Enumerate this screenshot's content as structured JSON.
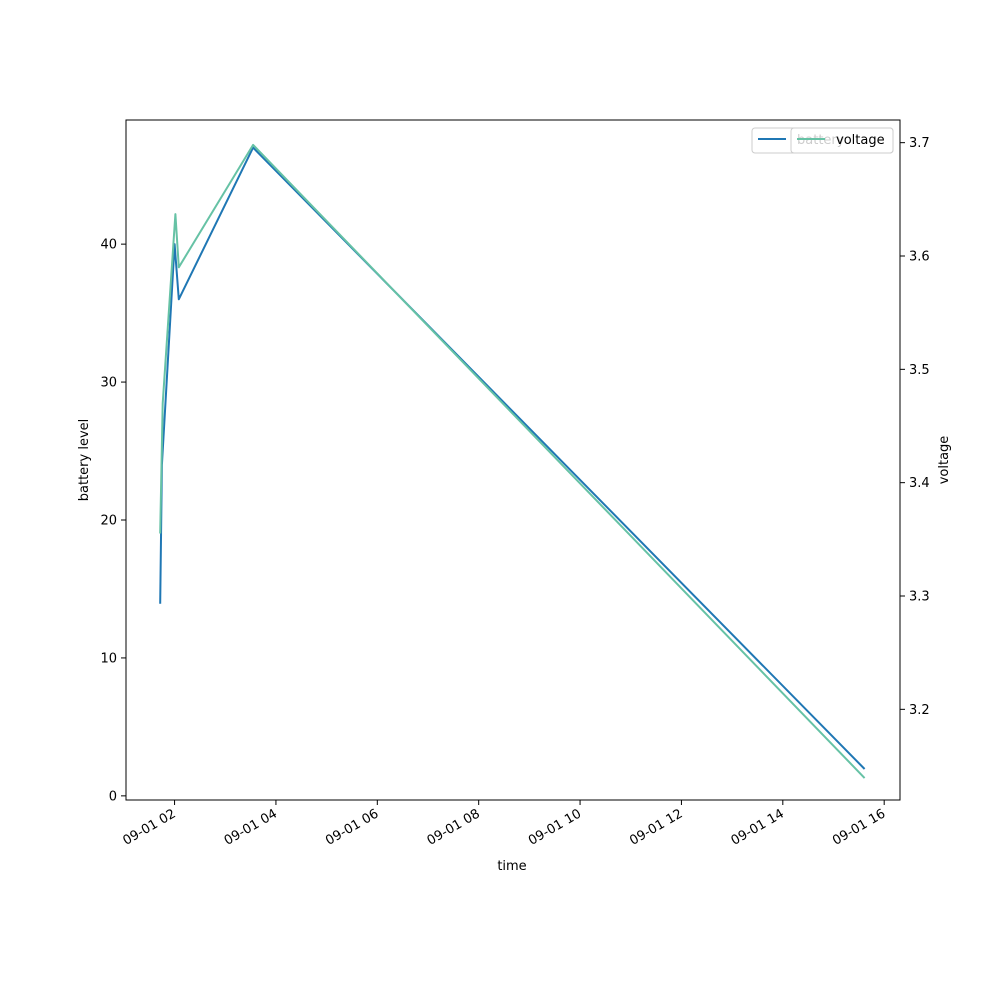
{
  "chart_data": {
    "type": "line",
    "title": "",
    "xlabel": "time",
    "ylabel_left": "battery level",
    "ylabel_right": "voltage",
    "x_axis": {
      "kind": "datetime",
      "tick_labels": [
        "09-01 02",
        "09-01 04",
        "09-01 06",
        "09-01 08",
        "09-01 10",
        "09-01 12",
        "09-01 14",
        "09-01 16"
      ]
    },
    "y_left": {
      "ylim": [
        -0.3,
        49
      ],
      "ticks": [
        0,
        10,
        20,
        30,
        40
      ]
    },
    "y_right": {
      "ylim": [
        3.12,
        3.72
      ],
      "ticks": [
        3.2,
        3.3,
        3.4,
        3.5,
        3.6,
        3.7
      ],
      "tick_labels": [
        "3.2",
        "3.3",
        "3.4",
        "3.5",
        "3.6",
        "3.7"
      ]
    },
    "grid": false,
    "legend_placement": "top-right",
    "series": [
      {
        "name": "battery",
        "axis": "left",
        "color": "#1f77b4",
        "points": [
          {
            "x": "2021-09-01 01:43",
            "y": 14
          },
          {
            "x": "2021-09-01 01:45",
            "y": 24
          },
          {
            "x": "2021-09-01 02:00",
            "y": 40
          },
          {
            "x": "2021-09-01 02:05",
            "y": 36
          },
          {
            "x": "2021-09-01 03:33",
            "y": 47
          },
          {
            "x": "2021-09-01 15:36",
            "y": 2
          }
        ]
      },
      {
        "name": "voltage",
        "axis": "right",
        "color": "#66c2a5",
        "points": [
          {
            "x": "2021-09-01 01:43",
            "y": 3.356
          },
          {
            "x": "2021-09-01 01:46",
            "y": 3.47
          },
          {
            "x": "2021-09-01 02:01",
            "y": 3.637
          },
          {
            "x": "2021-09-01 02:05",
            "y": 3.59
          },
          {
            "x": "2021-09-01 03:33",
            "y": 3.698
          },
          {
            "x": "2021-09-01 15:36",
            "y": 3.14
          }
        ]
      }
    ]
  }
}
